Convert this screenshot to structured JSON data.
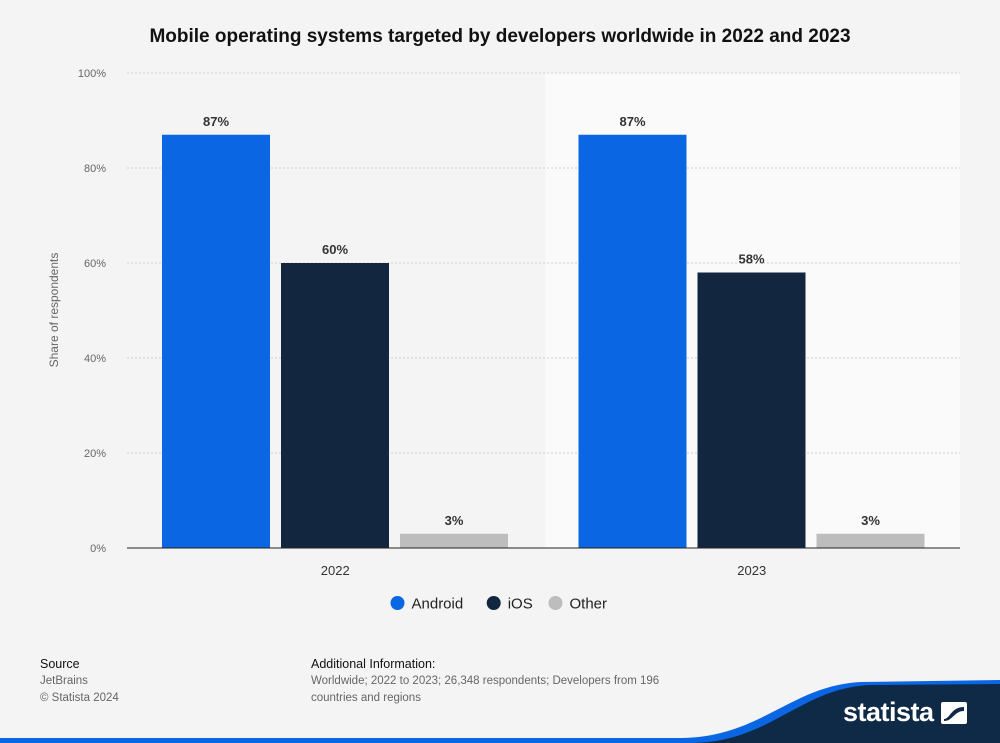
{
  "chart_data": {
    "type": "bar",
    "title": "Mobile operating systems targeted by developers worldwide in 2022 and 2023",
    "xlabel": "",
    "ylabel": "Share of respondents",
    "categories": [
      "2022",
      "2023"
    ],
    "series": [
      {
        "name": "Android",
        "values": [
          87,
          87
        ],
        "labels": [
          "87%",
          "87%"
        ],
        "color": "#0b66e4"
      },
      {
        "name": "iOS",
        "values": [
          60,
          58
        ],
        "labels": [
          "60%",
          "58%"
        ],
        "color": "#12263f"
      },
      {
        "name": "Other",
        "values": [
          3,
          3
        ],
        "labels": [
          "3%",
          "3%"
        ],
        "color": "#bdbdbd"
      }
    ],
    "ylim": [
      0,
      100
    ],
    "yticks": [
      0,
      20,
      40,
      60,
      80,
      100
    ],
    "ytick_labels": [
      "0%",
      "20%",
      "40%",
      "60%",
      "80%",
      "100%"
    ],
    "grid": true,
    "legend_position": "bottom-center"
  },
  "footer": {
    "source_heading": "Source",
    "source_name": "JetBrains",
    "copyright": "© Statista 2024",
    "info_heading": "Additional Information:",
    "info_text": "Worldwide; 2022 to 2023; 26,348 respondents; Developers from 196 countries and regions"
  },
  "brand": {
    "name": "statista",
    "accent": "#0b66e4",
    "dark": "#0e2a47"
  }
}
